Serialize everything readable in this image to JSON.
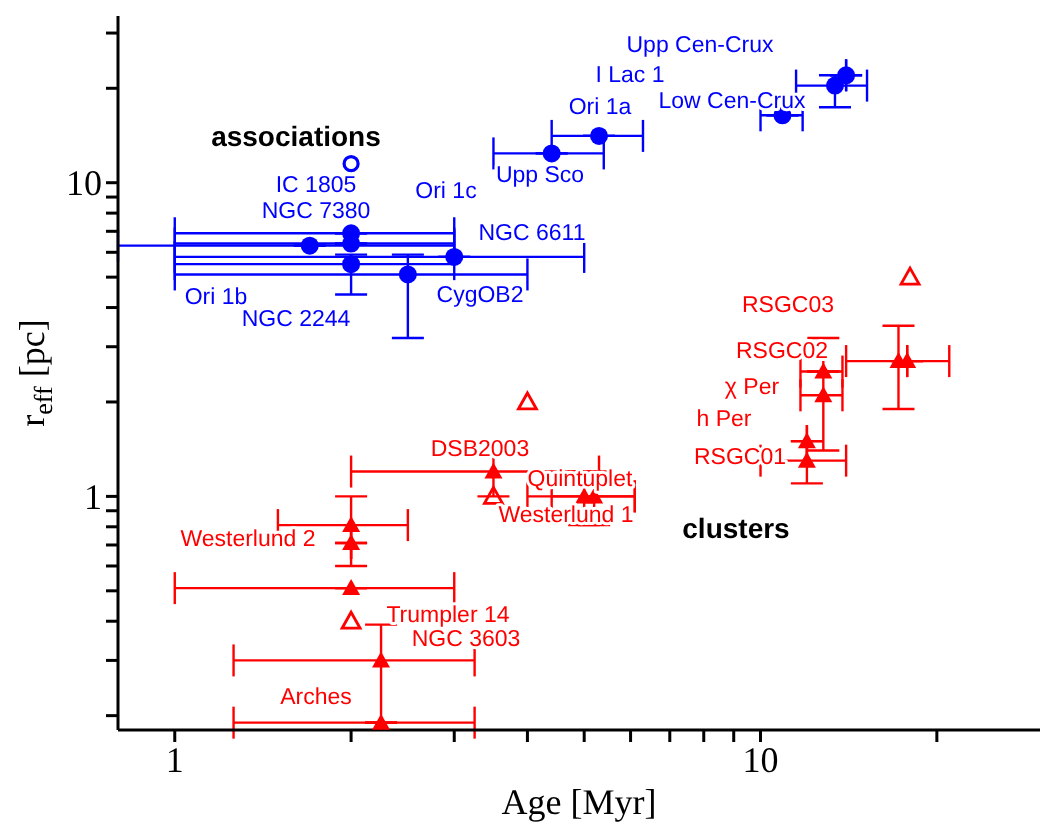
{
  "chart_data": {
    "type": "scatter",
    "xlabel": "Age [Myr]",
    "ylabel": "r$_{eff}$ [pc]",
    "log": "xy",
    "grid": false,
    "legend": false,
    "xlim": [
      0.8,
      30
    ],
    "ylim": [
      0.18,
      34
    ],
    "xticks": [
      1,
      {
        "value": 2,
        "label": null
      },
      {
        "value": 3,
        "label": null
      },
      {
        "value": 4,
        "label": null
      },
      {
        "value": 5,
        "label": null
      },
      {
        "value": 6,
        "label": null
      },
      {
        "value": 7,
        "label": null
      },
      {
        "value": 8,
        "label": null
      },
      {
        "value": 9,
        "label": null
      },
      10,
      {
        "value": 20,
        "label": null
      }
    ],
    "yticks": [
      {
        "value": 0.2,
        "label": null
      },
      {
        "value": 0.3,
        "label": null
      },
      {
        "value": 0.4,
        "label": null
      },
      {
        "value": 0.5,
        "label": null
      },
      {
        "value": 0.6,
        "label": null
      },
      {
        "value": 0.7,
        "label": null
      },
      {
        "value": 0.8,
        "label": null
      },
      {
        "value": 0.9,
        "label": null
      },
      1,
      {
        "value": 2,
        "label": null
      },
      {
        "value": 3,
        "label": null
      },
      {
        "value": 4,
        "label": null
      },
      {
        "value": 5,
        "label": null
      },
      {
        "value": 6,
        "label": null
      },
      {
        "value": 7,
        "label": null
      },
      {
        "value": 8,
        "label": null
      },
      {
        "value": 9,
        "label": null
      },
      10,
      {
        "value": 20,
        "label": null
      },
      {
        "value": 30,
        "label": null
      }
    ],
    "series": [
      {
        "marker": "circle",
        "color": "#0000ff",
        "x": [
          14.0,
          13.4,
          10.9,
          5.3,
          4.4,
          2.0,
          2.0,
          1.7,
          3.0,
          2.0,
          2.5
        ],
        "values": [
          22,
          20.4,
          16.4,
          14.1,
          12.4,
          6.9,
          6.4,
          6.3,
          5.8,
          5.5,
          5.1
        ],
        "errors": [
          null,
          [
            17.4,
            22
          ],
          null,
          null,
          null,
          null,
          null,
          null,
          null,
          [
            4.4,
            5.9
          ],
          [
            3.2,
            5.9
          ]
        ],
        "xerrors": [
          null,
          [
            11.5,
            15.2
          ],
          [
            10.0,
            11.8
          ],
          [
            4.4,
            6.3
          ],
          [
            3.5,
            5.4
          ],
          [
            1.0,
            3.0
          ],
          [
            1.0,
            3.0
          ],
          [
            0.8,
            3.0
          ],
          [
            1.0,
            5.0
          ],
          [
            1.0,
            3.0
          ],
          [
            1.0,
            4.0
          ]
        ]
      },
      {
        "marker": "circle",
        "color": "#0000ff",
        "x": [
          2.0
        ],
        "values": [
          11.5
        ]
      },
      {
        "marker": "triangle",
        "color": "#ff0000",
        "x": [
          3.5,
          5.0,
          5.2,
          2.0,
          2.0,
          2.0,
          2.25,
          2.25,
          17.2,
          17.8,
          12.8,
          12.8,
          12.0,
          12.0
        ],
        "values": [
          1.2,
          1.0,
          1.0,
          0.81,
          0.71,
          0.51,
          0.3,
          0.19,
          2.7,
          2.7,
          2.5,
          2.1,
          1.3,
          1.5
        ],
        "errors": [
          [
            1.0,
            1.5
          ],
          [
            0.81,
            1.2
          ],
          [
            0.81,
            1.2
          ],
          [
            0.6,
            1.0
          ],
          null,
          null,
          [
            0.19,
            0.39
          ],
          null,
          [
            1.9,
            3.5
          ],
          null,
          null,
          [
            1.4,
            3.2
          ],
          [
            1.1,
            1.5
          ],
          null
        ],
        "xerrors": [
          [
            2.0,
            5.3
          ],
          [
            4.0,
            6.1
          ],
          [
            4.4,
            6.1
          ],
          [
            1.5,
            2.5
          ],
          null,
          [
            1.0,
            3.0
          ],
          [
            1.26,
            3.25
          ],
          [
            1.26,
            3.25
          ],
          [
            14,
            21
          ],
          null,
          [
            11.7,
            13.8
          ],
          [
            11.7,
            13.8
          ],
          [
            10,
            14
          ],
          null
        ]
      },
      {
        "marker": "triangle",
        "color": "#ff0000",
        "x": [
          4.0,
          18,
          3.5,
          2.0
        ],
        "values": [
          2.0,
          5.0,
          1.0,
          0.4
        ]
      }
    ],
    "annotations": [
      "associations",
      "clusters",
      "Upp Cen-Crux",
      "I Lac 1",
      "Ori 1a",
      "Low Cen-Crux",
      "Upp Sco",
      "Ori 1c",
      "IC 1805",
      "NGC 7380",
      "NGC 6611",
      "Ori 1b",
      "NGC 2244",
      "CygOB2",
      "DSB2003",
      "Quintuplet",
      "Westerlund 1",
      "Westerlund 2",
      "Trumpler 14",
      "NGC 3603",
      "Arches",
      "RSGC03",
      "RSGC02",
      "χ Per",
      "h Per",
      "RSGC01"
    ]
  }
}
